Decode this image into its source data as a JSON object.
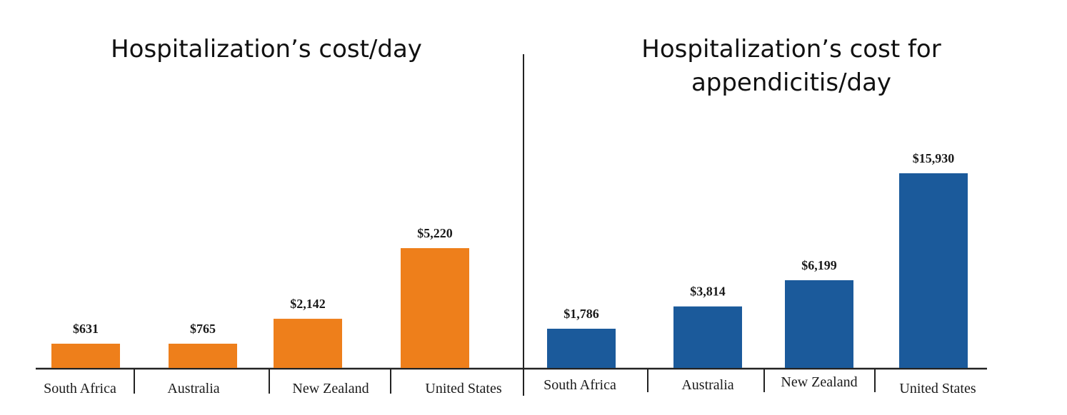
{
  "chart_data": [
    {
      "type": "bar",
      "title": "Hospitalization’s cost/day",
      "categories": [
        "South Africa",
        "Australia",
        "New Zealand",
        "United States"
      ],
      "values": [
        631,
        765,
        2142,
        5220
      ],
      "value_labels": [
        "$631",
        "$765",
        "$2,142",
        "$5,220"
      ],
      "color": "#ee7f1b",
      "xlabel": "",
      "ylabel": ""
    },
    {
      "type": "bar",
      "title_lines": [
        "Hospitalization’s cost for",
        "appendicitis/day"
      ],
      "categories": [
        "South Africa",
        "Australia",
        "New Zealand",
        "United States"
      ],
      "values": [
        1786,
        3814,
        6199,
        15930
      ],
      "value_labels": [
        "$1,786",
        "$3,814",
        "$6,199",
        "$15,930"
      ],
      "color": "#1b5a9b",
      "xlabel": "",
      "ylabel": ""
    }
  ]
}
